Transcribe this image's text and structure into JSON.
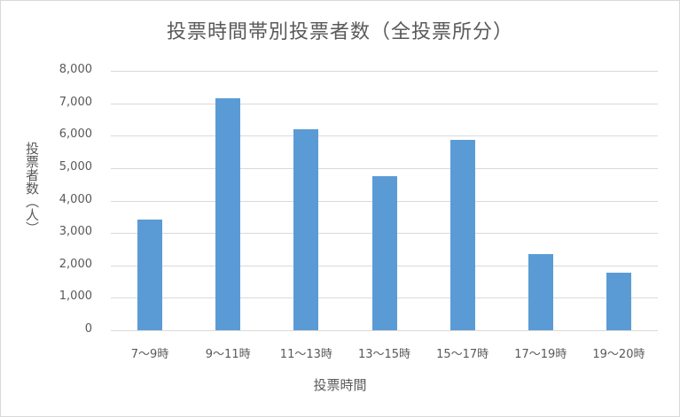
{
  "chart_data": {
    "type": "bar",
    "title": "投票時間帯別投票者数（全投票所分）",
    "xlabel": "投票時間",
    "ylabel": "投票者数（人）",
    "categories": [
      "7～9時",
      "9～11時",
      "11～13時",
      "13～15時",
      "15～17時",
      "17～19時",
      "19～20時"
    ],
    "values": [
      3400,
      7140,
      6210,
      4740,
      5860,
      2340,
      1770
    ],
    "ylim": [
      0,
      8000
    ],
    "yticks": [
      "0",
      "1,000",
      "2,000",
      "3,000",
      "4,000",
      "5,000",
      "6,000",
      "7,000",
      "8,000"
    ],
    "grid": true,
    "legend": "none",
    "bar_color": "#5b9bd5"
  }
}
